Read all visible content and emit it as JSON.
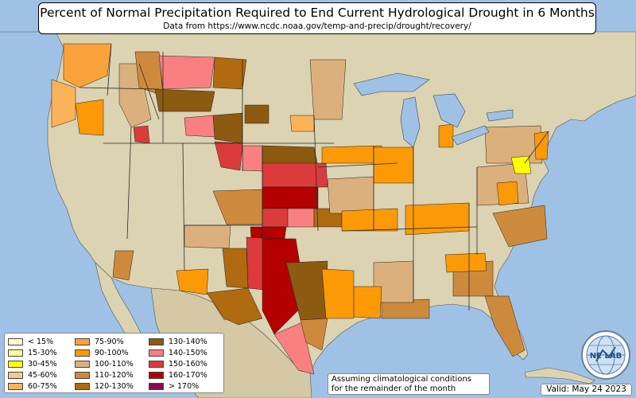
{
  "title": "Percent of Normal Precipitation Required to End Current Hydrological Drought in 6 Months",
  "subtitle": "Data from https://www.ncdc.noaa.gov/temp-and-precip/drought/recovery/",
  "note": {
    "line1": "Assuming climatological conditions",
    "line2": "for the remainder of the month"
  },
  "valid": "Valid: May 24 2023",
  "logo": {
    "text": "NE LAB",
    "icon": "globe-icon"
  },
  "colors": {
    "ocean": "#9fc1e6",
    "land": "#dcd3b2",
    "border": "#2a2a2a"
  },
  "legend": {
    "columns": [
      [
        {
          "label": "< 15%",
          "color": "#ffffcc"
        },
        {
          "label": "15-30%",
          "color": "#ffff99"
        },
        {
          "label": "30-45%",
          "color": "#ffff00"
        },
        {
          "label": "45-60%",
          "color": "#f5c98a"
        },
        {
          "label": "60-75%",
          "color": "#fbb35a"
        }
      ],
      [
        {
          "label": "75-90%",
          "color": "#f9a23a"
        },
        {
          "label": "90-100%",
          "color": "#fb9a06"
        },
        {
          "label": "100-110%",
          "color": "#dcb07c"
        },
        {
          "label": "110-120%",
          "color": "#cd8a3d"
        },
        {
          "label": "120-130%",
          "color": "#b06a10"
        }
      ],
      [
        {
          "label": "130-140%",
          "color": "#8c5a10"
        },
        {
          "label": "140-150%",
          "color": "#f98080"
        },
        {
          "label": "150-160%",
          "color": "#dc3b3b"
        },
        {
          "label": "160-170%",
          "color": "#b40000"
        },
        {
          "label": "> 170%",
          "color": "#8b0a50"
        }
      ]
    ]
  }
}
